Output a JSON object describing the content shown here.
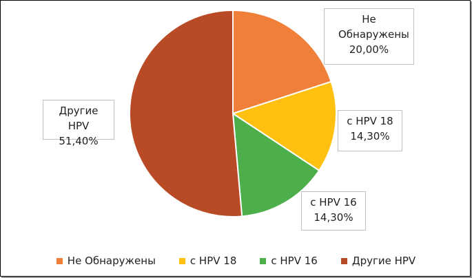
{
  "chart_data": {
    "type": "pie",
    "title": "",
    "start_angle_deg": 0,
    "direction": "clockwise",
    "legend_position": "bottom",
    "slices": [
      {
        "name": "Не Обнаружены",
        "value": 20.0,
        "label": "20,00%",
        "color": "#F07F3A"
      },
      {
        "name": "с HPV 18",
        "value": 14.3,
        "label": "14,30%",
        "color": "#FFC010"
      },
      {
        "name": "с HPV 16",
        "value": 14.3,
        "label": "14,30%",
        "color": "#4CAF4C"
      },
      {
        "name": "Другие HPV",
        "value": 51.4,
        "label": "51,40%",
        "color": "#B84A25"
      }
    ]
  }
}
